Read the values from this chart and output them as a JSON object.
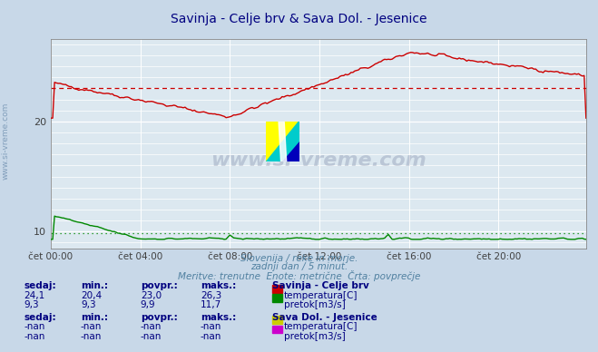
{
  "title": "Savinja - Celje brv & Sava Dol. - Jesenice",
  "title_color": "#000080",
  "title_fontsize": 10,
  "bg_color": "#c8d8e8",
  "plot_bg_color": "#dce8f0",
  "grid_color": "#ffffff",
  "grid_minor_color": "#c0d0e0",
  "xlabel_ticks": [
    "čet 00:00",
    "čet 04:00",
    "čet 08:00",
    "čet 12:00",
    "čet 16:00",
    "čet 20:00"
  ],
  "tick_positions": [
    0,
    48,
    96,
    144,
    192,
    240
  ],
  "xlim": [
    0,
    287
  ],
  "ylim": [
    8.5,
    27.5
  ],
  "yticks": [
    10,
    20
  ],
  "avg_temp": 23.0,
  "avg_flow": 9.9,
  "subtitle1": "Slovenija / reke in morje.",
  "subtitle2": "zadnji dan / 5 minut.",
  "subtitle3": "Meritve: trenutne  Enote: metrične  Črta: povprečje",
  "text_color": "#5080a0",
  "station1_name": "Savinja - Celje brv",
  "station2_name": "Sava Dol. - Jesenice",
  "temp_color": "#cc0000",
  "flow_color": "#008800",
  "temp2_color": "#cccc00",
  "flow2_color": "#cc00cc",
  "watermark_color": "#203060",
  "label_color": "#000080",
  "side_label_color": "#7090b0"
}
